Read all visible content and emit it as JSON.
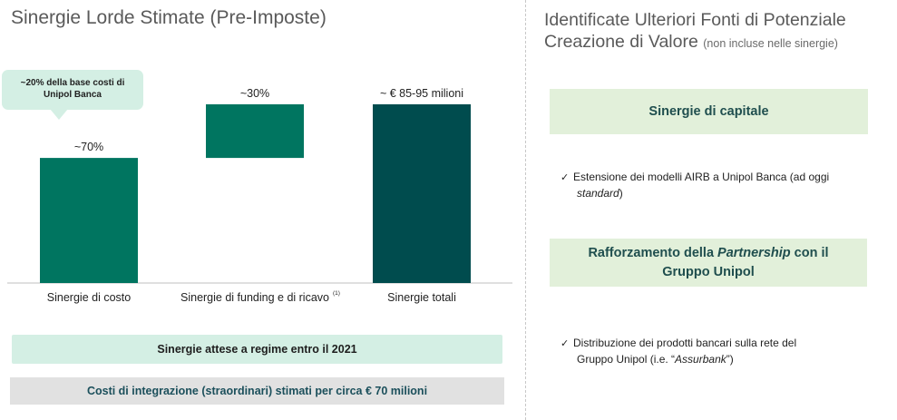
{
  "left": {
    "title": "Sinergie Lorde Stimate (Pre-Imposte)",
    "callout_line1": "~20% della base costi di",
    "callout_line2": "Unipol Banca"
  },
  "chart_data": {
    "type": "bar",
    "title": "Sinergie Lorde Stimate (Pre-Imposte)",
    "categories": [
      "Sinergie di costo",
      "Sinergie di funding e di ricavo",
      "Sinergie totali"
    ],
    "footnote_marks": [
      "",
      "(1)",
      ""
    ],
    "values_percent_of_total": [
      70,
      30,
      100
    ],
    "bar_base_percent": [
      0,
      70,
      0
    ],
    "data_labels": [
      "~70%",
      "~30%",
      "~ € 85-95 milioni"
    ],
    "bar_colors": [
      "#007560",
      "#007560",
      "#004c4e"
    ],
    "ylim": [
      0,
      100
    ],
    "grid": false,
    "legend": "none"
  },
  "banners": {
    "timing": "Sinergie attese a regime entro il 2021",
    "costs": "Costi di integrazione (straordinari) stimati per circa € 70 milioni"
  },
  "right": {
    "title_line1": "Identificate Ulteriori Fonti di Potenziale",
    "title_line2": "Creazione di Valore",
    "title_note": "(non incluse nelle sinergie)",
    "box1": "Sinergie di capitale",
    "bullet1_text": "Estensione dei modelli AIRB a Unipol Banca (ad oggi",
    "bullet1_italic": "standard",
    "bullet1_close": ")",
    "box2_pre": "Rafforzamento della ",
    "box2_italic": "Partnership",
    "box2_post": " con il",
    "box2_line2": "Gruppo Unipol",
    "bullet2_line1": "Distribuzione dei prodotti bancari sulla rete del",
    "bullet2_pre": "Gruppo Unipol (i.e. “",
    "bullet2_italic": "Assurbank",
    "bullet2_post": "”)",
    "check_glyph": "✓"
  }
}
